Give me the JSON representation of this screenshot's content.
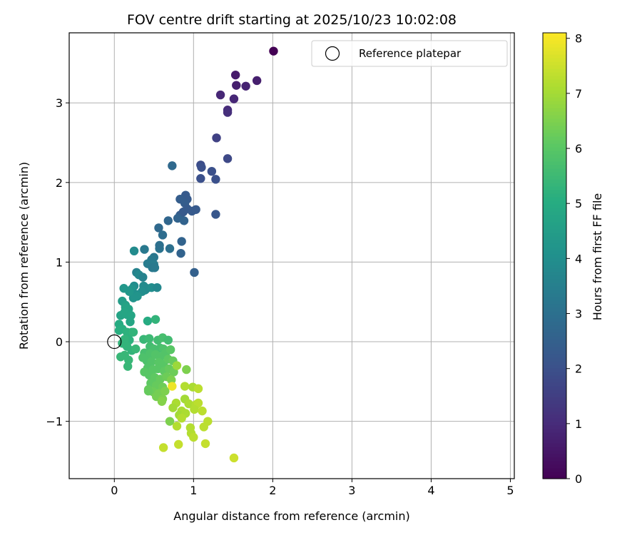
{
  "chart_data": {
    "type": "scatter",
    "title": "FOV centre drift starting at 2025/10/23 10:02:08",
    "xlabel": "Angular distance from reference (arcmin)",
    "ylabel": "Rotation from reference (arcmin)",
    "xlim": [
      -0.57,
      5.05
    ],
    "ylim": [
      -1.72,
      3.88
    ],
    "xticks": [
      0,
      1,
      2,
      3,
      4,
      5
    ],
    "yticks": [
      -1,
      0,
      1,
      2,
      3
    ],
    "grid": true,
    "legend": {
      "position": "top-right",
      "entries": [
        "Reference platepar"
      ]
    },
    "reference_point": {
      "x": 0,
      "y": 0,
      "label": "Reference platepar"
    },
    "colorbar": {
      "label": "Hours from first FF file",
      "range": [
        0,
        8.1
      ],
      "ticks": [
        0,
        1,
        2,
        3,
        4,
        5,
        6,
        7,
        8
      ],
      "colormap": "viridis"
    },
    "points": [
      [
        2.01,
        3.65,
        0.0
      ],
      [
        1.53,
        3.35,
        0.6
      ],
      [
        1.8,
        3.28,
        0.7
      ],
      [
        1.54,
        3.22,
        0.7
      ],
      [
        1.66,
        3.21,
        0.8
      ],
      [
        1.34,
        3.1,
        0.9
      ],
      [
        1.51,
        3.05,
        0.9
      ],
      [
        1.43,
        2.91,
        1.0
      ],
      [
        1.43,
        2.88,
        1.1
      ],
      [
        1.29,
        2.56,
        1.6
      ],
      [
        1.43,
        2.3,
        1.8
      ],
      [
        1.09,
        2.22,
        1.9
      ],
      [
        1.1,
        2.19,
        2.0
      ],
      [
        1.23,
        2.14,
        2.0
      ],
      [
        1.09,
        2.05,
        2.0
      ],
      [
        1.28,
        2.04,
        2.0
      ],
      [
        0.73,
        2.21,
        2.8
      ],
      [
        0.9,
        1.84,
        2.3
      ],
      [
        0.92,
        1.79,
        2.3
      ],
      [
        0.83,
        1.79,
        2.4
      ],
      [
        0.89,
        1.74,
        2.4
      ],
      [
        0.83,
        1.59,
        2.4
      ],
      [
        0.87,
        1.63,
        2.3
      ],
      [
        0.92,
        1.67,
        2.3
      ],
      [
        0.98,
        1.64,
        2.3
      ],
      [
        1.03,
        1.66,
        2.3
      ],
      [
        0.8,
        1.55,
        2.6
      ],
      [
        0.88,
        1.52,
        2.6
      ],
      [
        0.68,
        1.52,
        2.7
      ],
      [
        1.28,
        1.6,
        2.2
      ],
      [
        0.56,
        1.43,
        2.8
      ],
      [
        0.61,
        1.34,
        2.9
      ],
      [
        0.85,
        1.26,
        2.6
      ],
      [
        0.57,
        1.17,
        3.1
      ],
      [
        0.7,
        1.17,
        3.0
      ],
      [
        0.84,
        1.11,
        2.6
      ],
      [
        0.57,
        1.21,
        3.0
      ],
      [
        0.5,
        1.06,
        3.2
      ],
      [
        0.47,
        1.03,
        3.3
      ],
      [
        0.42,
        0.98,
        3.4
      ],
      [
        0.5,
        0.97,
        3.4
      ],
      [
        0.48,
        0.93,
        3.3
      ],
      [
        0.51,
        0.93,
        3.3
      ],
      [
        1.01,
        0.87,
        2.5
      ],
      [
        0.25,
        1.14,
        3.9
      ],
      [
        0.38,
        1.16,
        3.3
      ],
      [
        0.28,
        0.87,
        3.6
      ],
      [
        0.31,
        0.84,
        3.8
      ],
      [
        0.36,
        0.81,
        3.6
      ],
      [
        0.25,
        0.7,
        4.0
      ],
      [
        0.37,
        0.7,
        3.9
      ],
      [
        0.39,
        0.65,
        3.9
      ],
      [
        0.41,
        0.67,
        3.9
      ],
      [
        0.47,
        0.68,
        4.0
      ],
      [
        0.54,
        0.68,
        3.8
      ],
      [
        0.35,
        0.63,
        4.0
      ],
      [
        0.22,
        0.66,
        4.2
      ],
      [
        0.26,
        0.6,
        4.1
      ],
      [
        0.29,
        0.57,
        4.2
      ],
      [
        0.24,
        0.55,
        4.2
      ],
      [
        0.12,
        0.67,
        4.3
      ],
      [
        0.19,
        0.63,
        4.3
      ],
      [
        0.1,
        0.51,
        4.5
      ],
      [
        0.14,
        0.46,
        4.6
      ],
      [
        0.14,
        0.43,
        4.7
      ],
      [
        0.18,
        0.41,
        4.7
      ],
      [
        0.08,
        0.33,
        4.7
      ],
      [
        0.13,
        0.37,
        4.8
      ],
      [
        0.16,
        0.34,
        4.8
      ],
      [
        0.21,
        0.33,
        4.8
      ],
      [
        0.2,
        0.25,
        4.8
      ],
      [
        0.42,
        0.26,
        5.0
      ],
      [
        0.52,
        0.28,
        5.3
      ],
      [
        0.06,
        0.22,
        5.0
      ],
      [
        0.1,
        0.16,
        5.1
      ],
      [
        0.06,
        0.14,
        5.1
      ],
      [
        0.16,
        0.12,
        5.2
      ],
      [
        0.22,
        0.12,
        5.2
      ],
      [
        0.24,
        0.12,
        5.3
      ],
      [
        0.19,
        0.02,
        5.2
      ],
      [
        0.13,
        0.03,
        5.3
      ],
      [
        0.1,
        -0.02,
        5.3
      ],
      [
        0.16,
        -0.06,
        5.3
      ],
      [
        0.22,
        -0.11,
        5.3
      ],
      [
        0.27,
        -0.09,
        5.4
      ],
      [
        0.13,
        -0.17,
        5.4
      ],
      [
        0.08,
        -0.19,
        5.4
      ],
      [
        0.18,
        -0.23,
        5.4
      ],
      [
        0.17,
        -0.31,
        5.4
      ],
      [
        0.37,
        0.03,
        5.4
      ],
      [
        0.44,
        0.04,
        5.5
      ],
      [
        0.55,
        0.02,
        5.6
      ],
      [
        0.61,
        0.05,
        5.7
      ],
      [
        0.68,
        0.02,
        5.6
      ],
      [
        0.45,
        -0.06,
        5.6
      ],
      [
        0.5,
        -0.09,
        5.7
      ],
      [
        0.58,
        -0.08,
        5.7
      ],
      [
        0.62,
        -0.09,
        5.8
      ],
      [
        0.38,
        -0.14,
        5.7
      ],
      [
        0.45,
        -0.15,
        5.8
      ],
      [
        0.52,
        -0.16,
        5.9
      ],
      [
        0.58,
        -0.19,
        5.9
      ],
      [
        0.65,
        -0.14,
        5.9
      ],
      [
        0.71,
        -0.1,
        6.0
      ],
      [
        0.36,
        -0.2,
        5.8
      ],
      [
        0.41,
        -0.24,
        5.8
      ],
      [
        0.47,
        -0.25,
        5.9
      ],
      [
        0.56,
        -0.26,
        6.0
      ],
      [
        0.62,
        -0.28,
        6.0
      ],
      [
        0.68,
        -0.22,
        6.1
      ],
      [
        0.74,
        -0.24,
        6.2
      ],
      [
        0.42,
        -0.33,
        5.9
      ],
      [
        0.49,
        -0.35,
        6.0
      ],
      [
        0.55,
        -0.34,
        6.0
      ],
      [
        0.63,
        -0.37,
        6.1
      ],
      [
        0.69,
        -0.34,
        6.2
      ],
      [
        0.75,
        -0.38,
        6.3
      ],
      [
        0.79,
        -0.3,
        6.9
      ],
      [
        0.91,
        -0.35,
        6.5
      ],
      [
        0.38,
        -0.38,
        6.0
      ],
      [
        0.44,
        -0.42,
        6.0
      ],
      [
        0.51,
        -0.45,
        6.1
      ],
      [
        0.58,
        -0.47,
        6.2
      ],
      [
        0.66,
        -0.44,
        6.3
      ],
      [
        0.72,
        -0.48,
        6.5
      ],
      [
        0.46,
        -0.52,
        6.1
      ],
      [
        0.53,
        -0.55,
        6.2
      ],
      [
        0.61,
        -0.57,
        6.3
      ],
      [
        0.43,
        -0.6,
        6.2
      ],
      [
        0.49,
        -0.63,
        6.3
      ],
      [
        0.56,
        -0.65,
        6.4
      ],
      [
        0.64,
        -0.62,
        6.5
      ],
      [
        0.53,
        -0.69,
        6.4
      ],
      [
        0.61,
        -0.72,
        6.5
      ],
      [
        0.6,
        -0.75,
        6.6
      ],
      [
        0.43,
        -0.62,
        6.2
      ],
      [
        0.73,
        -0.56,
        7.9
      ],
      [
        0.89,
        -0.56,
        7.2
      ],
      [
        0.99,
        -0.57,
        7.1
      ],
      [
        1.06,
        -0.59,
        7.3
      ],
      [
        0.89,
        -0.72,
        7.0
      ],
      [
        0.78,
        -0.77,
        7.1
      ],
      [
        0.94,
        -0.78,
        7.1
      ],
      [
        1.03,
        -0.79,
        7.2
      ],
      [
        1.06,
        -0.77,
        7.3
      ],
      [
        0.74,
        -0.83,
        7.0
      ],
      [
        0.85,
        -0.87,
        7.1
      ],
      [
        1.01,
        -0.85,
        7.2
      ],
      [
        1.11,
        -0.87,
        7.3
      ],
      [
        0.82,
        -0.92,
        7.0
      ],
      [
        0.9,
        -0.9,
        7.1
      ],
      [
        0.85,
        -0.96,
        7.2
      ],
      [
        1.18,
        -1.0,
        7.3
      ],
      [
        0.7,
        -1.0,
        6.5
      ],
      [
        0.79,
        -1.06,
        7.2
      ],
      [
        0.96,
        -1.08,
        7.2
      ],
      [
        1.13,
        -1.07,
        7.3
      ],
      [
        0.97,
        -1.15,
        7.2
      ],
      [
        1.0,
        -1.2,
        7.3
      ],
      [
        1.15,
        -1.28,
        7.4
      ],
      [
        0.62,
        -1.33,
        7.4
      ],
      [
        0.81,
        -1.29,
        7.4
      ],
      [
        1.51,
        -1.46,
        7.5
      ]
    ]
  }
}
